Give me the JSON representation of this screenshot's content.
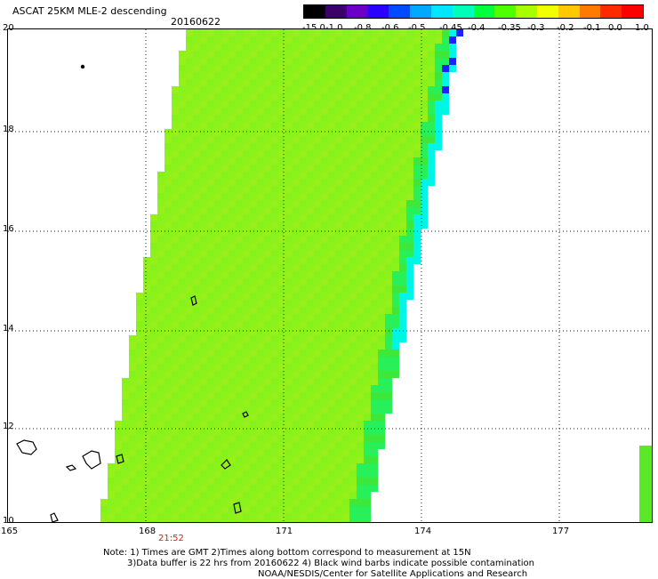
{
  "header": {
    "title": "ASCAT 25KM MLE-2 descending",
    "date": "20160622"
  },
  "colorbar": {
    "labels": [
      "-15.0",
      "-1.0",
      "-0.8",
      "-0.6",
      "-0.5",
      "-0.45",
      "-0.4",
      "-0.35",
      "-0.3",
      "-0.2",
      "-0.1",
      "0.0",
      "1.0"
    ],
    "colors": [
      "#000000",
      "#3b006a",
      "#6a00c8",
      "#2a00ff",
      "#004bff",
      "#00a8ff",
      "#00e6ff",
      "#00ffb8",
      "#00ff3c",
      "#4dff00",
      "#a8ff00",
      "#f2ff00",
      "#ffc800",
      "#ff7a00",
      "#ff2a00",
      "#ff0000"
    ]
  },
  "axes": {
    "y_ticks": [
      "20",
      "18",
      "16",
      "14",
      "12",
      "10"
    ],
    "x_ticks": [
      "165",
      "168",
      "171",
      "174",
      "177"
    ],
    "y_range": [
      10,
      20
    ],
    "x_range": [
      165,
      179.5
    ]
  },
  "swath": {
    "time_label": "21:52",
    "main_color": "#8cf21a"
  },
  "notes": {
    "line1": "Note: 1) Times are GMT 2)Times along bottom correspond to measurement at 15N",
    "line2": "3)Data buffer is 22 hrs from 20160622 4) Black wind barbs indicate possible contamination",
    "line3": "NOAA/NESDIS/Center for Satellite Applications and Research"
  }
}
